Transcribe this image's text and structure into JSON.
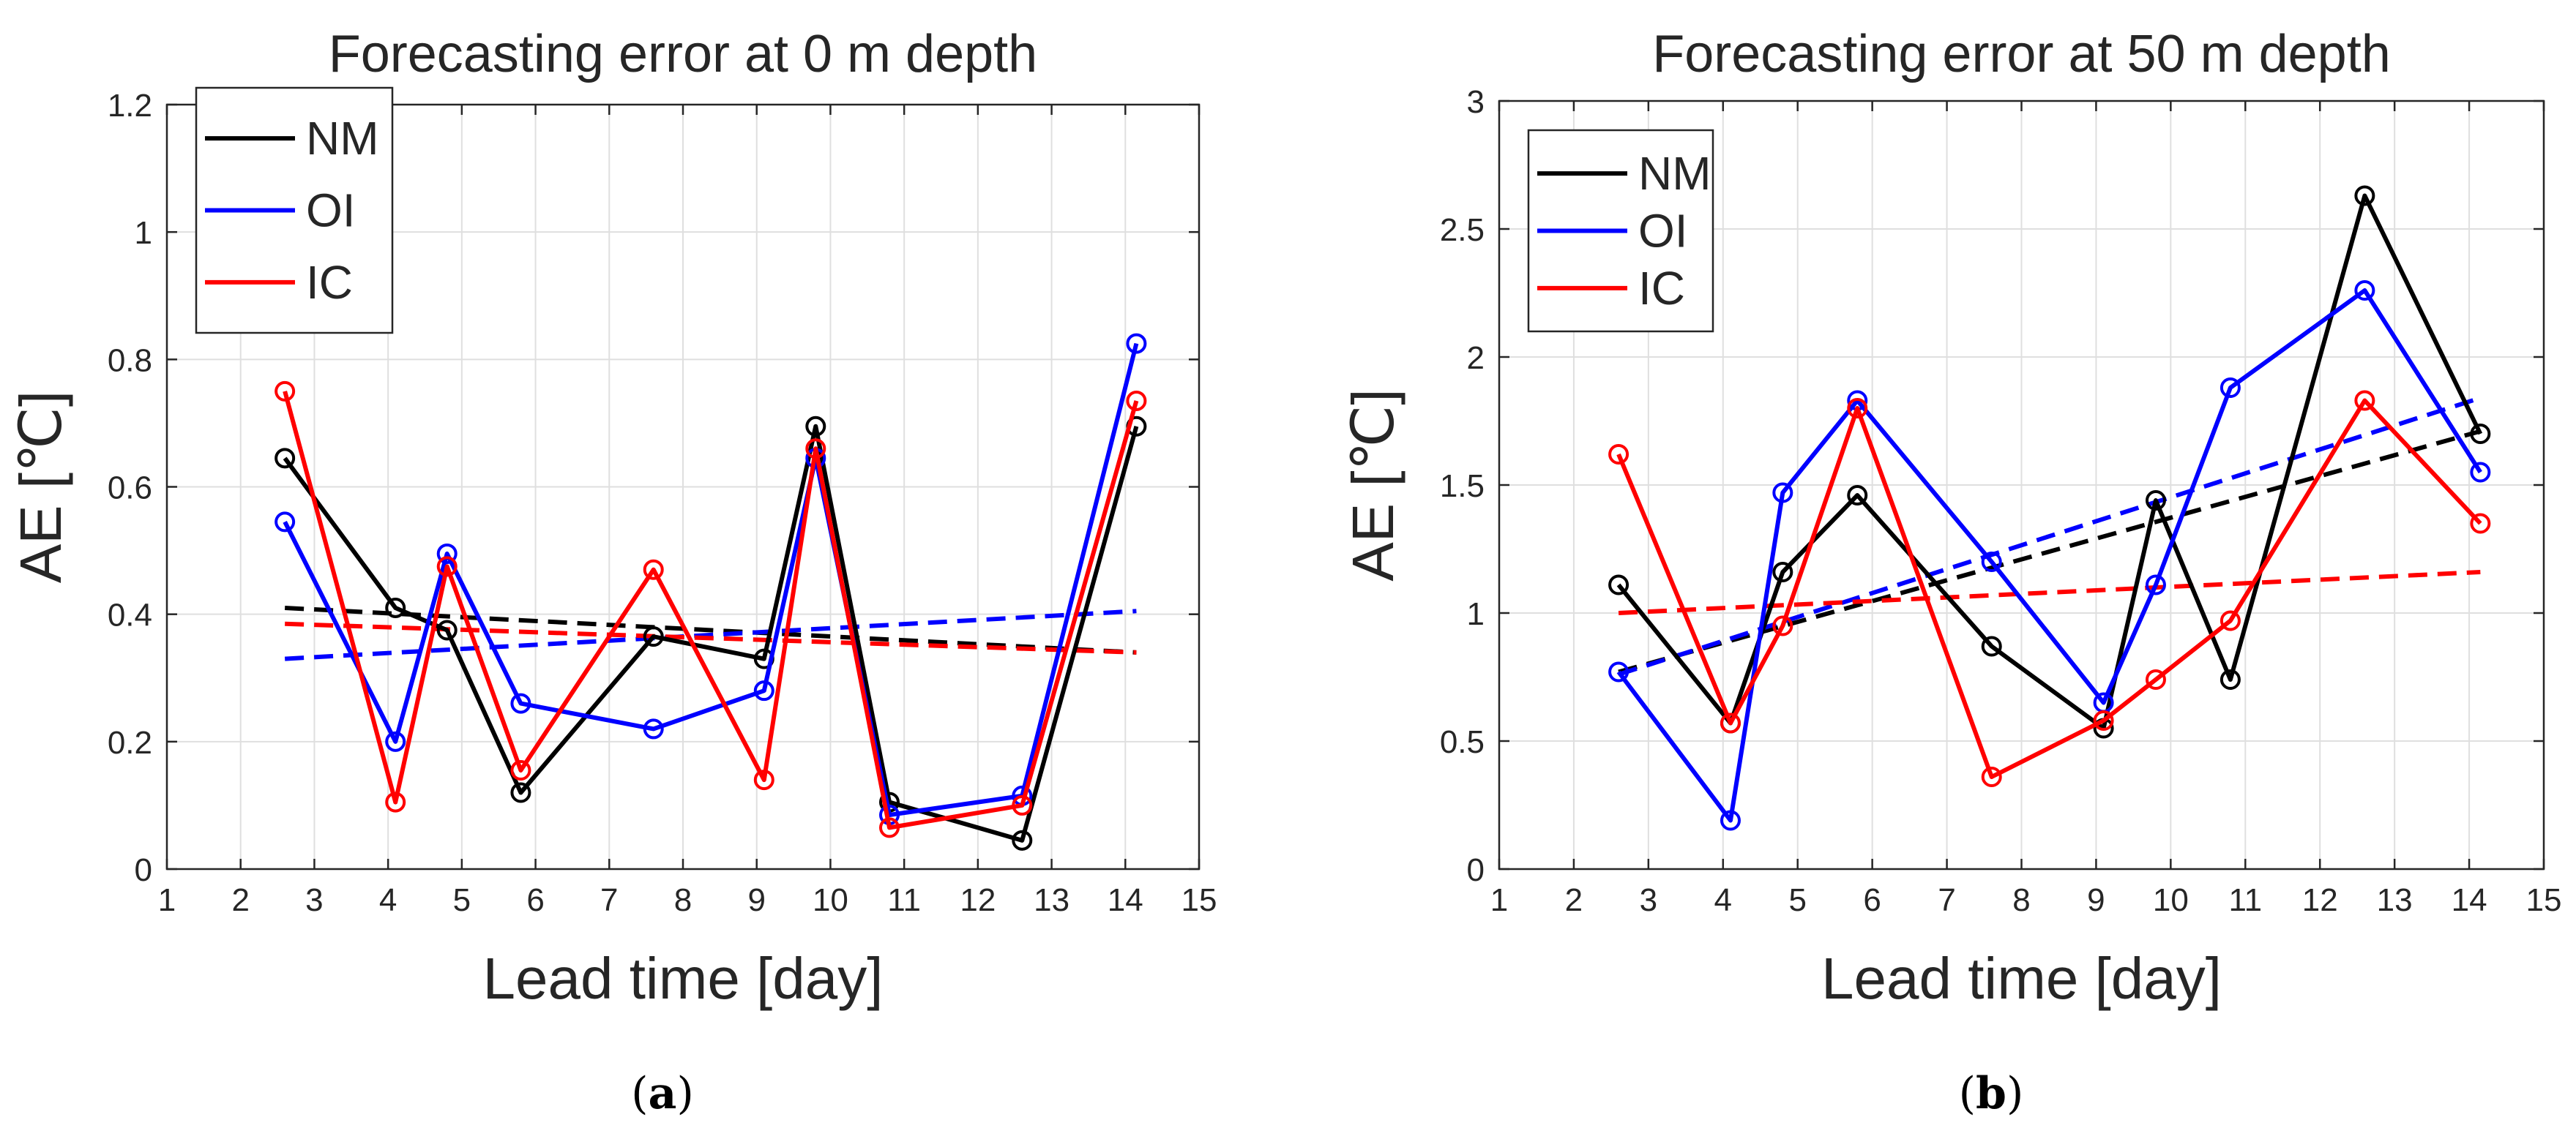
{
  "figure": {
    "captions": [
      {
        "open": "(",
        "label": "a",
        "close": ")"
      },
      {
        "open": "(",
        "label": "b",
        "close": ")"
      }
    ]
  },
  "colors": {
    "NM": "#000000",
    "OI": "#0000ff",
    "IC": "#ff0000"
  },
  "chart_data": [
    {
      "type": "line",
      "title": "Forecasting error at 0 m depth",
      "xlabel": "Lead time [day]",
      "ylabel": "AE [℃]",
      "xlim": [
        1,
        15
      ],
      "ylim": [
        0,
        1.2
      ],
      "xticks": [
        1,
        2,
        3,
        4,
        5,
        6,
        7,
        8,
        9,
        10,
        11,
        12,
        13,
        14,
        15
      ],
      "yticks": [
        0,
        0.2,
        0.4,
        0.6,
        0.8,
        1,
        1.2
      ],
      "ytick_labels": [
        "0",
        "0.2",
        "0.4",
        "0.6",
        "0.8",
        "1",
        "1.2"
      ],
      "grid": true,
      "legend": "top-left",
      "series": [
        {
          "name": "NM",
          "x": [
            2.6,
            4.1,
            4.8,
            5.8,
            7.6,
            9.1,
            9.8,
            10.8,
            12.6,
            14.15
          ],
          "values": [
            0.645,
            0.41,
            0.375,
            0.12,
            0.365,
            0.33,
            0.695,
            0.105,
            0.045,
            0.695
          ],
          "trend": [
            0.41,
            0.34
          ]
        },
        {
          "name": "OI",
          "x": [
            2.6,
            4.1,
            4.8,
            5.8,
            7.6,
            9.1,
            9.8,
            10.8,
            12.6,
            14.15
          ],
          "values": [
            0.545,
            0.2,
            0.495,
            0.26,
            0.22,
            0.28,
            0.645,
            0.085,
            0.115,
            0.825
          ],
          "trend": [
            0.33,
            0.405
          ]
        },
        {
          "name": "IC",
          "x": [
            2.6,
            4.1,
            4.8,
            5.8,
            7.6,
            9.1,
            9.8,
            10.8,
            12.6,
            14.15
          ],
          "values": [
            0.75,
            0.105,
            0.475,
            0.155,
            0.47,
            0.14,
            0.66,
            0.065,
            0.1,
            0.735
          ],
          "trend": [
            0.385,
            0.34
          ]
        }
      ]
    },
    {
      "type": "line",
      "title": "Forecasting error at 50 m depth",
      "xlabel": "Lead time [day]",
      "ylabel": "AE [℃]",
      "xlim": [
        1,
        15
      ],
      "ylim": [
        0,
        3
      ],
      "xticks": [
        1,
        2,
        3,
        4,
        5,
        6,
        7,
        8,
        9,
        10,
        11,
        12,
        13,
        14,
        15
      ],
      "yticks": [
        0,
        0.5,
        1,
        1.5,
        2,
        2.5,
        3
      ],
      "ytick_labels": [
        "0",
        "0.5",
        "1",
        "1.5",
        "2",
        "2.5",
        "3"
      ],
      "grid": true,
      "legend": "top-left",
      "series": [
        {
          "name": "NM",
          "x": [
            2.6,
            4.1,
            4.8,
            5.8,
            7.6,
            9.1,
            9.8,
            10.8,
            12.6,
            14.15
          ],
          "values": [
            1.11,
            0.57,
            1.16,
            1.46,
            0.87,
            0.55,
            1.44,
            0.74,
            2.63,
            1.7
          ],
          "trend": [
            0.77,
            1.71
          ]
        },
        {
          "name": "OI",
          "x": [
            2.6,
            4.1,
            4.8,
            5.8,
            7.6,
            9.1,
            9.8,
            10.8,
            12.6,
            14.15
          ],
          "values": [
            0.77,
            0.19,
            1.47,
            1.83,
            1.2,
            0.65,
            1.11,
            1.88,
            2.26,
            1.55
          ],
          "trend": [
            0.76,
            1.84
          ]
        },
        {
          "name": "IC",
          "x": [
            2.6,
            4.1,
            4.8,
            5.8,
            7.6,
            9.1,
            9.8,
            10.8,
            12.6,
            14.15
          ],
          "values": [
            1.62,
            0.57,
            0.95,
            1.8,
            0.36,
            0.58,
            0.74,
            0.97,
            1.83,
            1.35
          ],
          "trend": [
            1.0,
            1.16
          ]
        }
      ]
    }
  ]
}
